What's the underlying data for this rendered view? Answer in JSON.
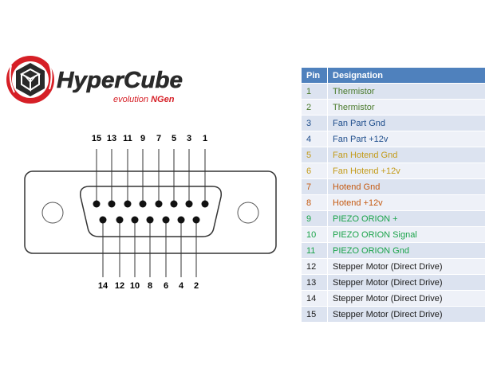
{
  "logo": {
    "title": "HyperCube",
    "subtitle": "evolution",
    "subtitle_tag": "NGen",
    "colors": {
      "red": "#d61f26",
      "dark": "#2a2a2a",
      "ring": "#ffffff"
    }
  },
  "connector": {
    "top_pin_labels": [
      "15",
      "13",
      "11",
      "9",
      "7",
      "5",
      "3",
      "1"
    ],
    "bottom_pin_labels": [
      "14",
      "12",
      "10",
      "8",
      "6",
      "4",
      "2"
    ]
  },
  "table": {
    "headers": {
      "pin": "Pin",
      "designation": "Designation"
    },
    "header_color": "#4f81bd",
    "rows": [
      {
        "pin": "1",
        "designation": "Thermistor",
        "color": "#4a7a2c"
      },
      {
        "pin": "2",
        "designation": "Thermistor",
        "color": "#4a7a2c"
      },
      {
        "pin": "3",
        "designation": "Fan Part Gnd",
        "color": "#1f4e8c"
      },
      {
        "pin": "4",
        "designation": "Fan Part +12v",
        "color": "#1f4e8c"
      },
      {
        "pin": "5",
        "designation": "Fan Hotend Gnd",
        "color": "#c39b19"
      },
      {
        "pin": "6",
        "designation": "Fan Hotend +12v",
        "color": "#c39b19"
      },
      {
        "pin": "7",
        "designation": "Hotend Gnd",
        "color": "#c55a11"
      },
      {
        "pin": "8",
        "designation": "Hotend +12v",
        "color": "#c55a11"
      },
      {
        "pin": "9",
        "designation": "PIEZO ORION +",
        "color": "#1aa34a"
      },
      {
        "pin": "10",
        "designation": "PIEZO ORION Signal",
        "color": "#1aa34a"
      },
      {
        "pin": "11",
        "designation": "PIEZO ORION Gnd",
        "color": "#1aa34a"
      },
      {
        "pin": "12",
        "designation": "Stepper Motor (Direct Drive)",
        "color": "#1a1a1a"
      },
      {
        "pin": "13",
        "designation": "Stepper Motor (Direct Drive)",
        "color": "#1a1a1a"
      },
      {
        "pin": "14",
        "designation": "Stepper Motor (Direct Drive)",
        "color": "#1a1a1a"
      },
      {
        "pin": "15",
        "designation": "Stepper Motor (Direct Drive)",
        "color": "#1a1a1a"
      }
    ]
  }
}
